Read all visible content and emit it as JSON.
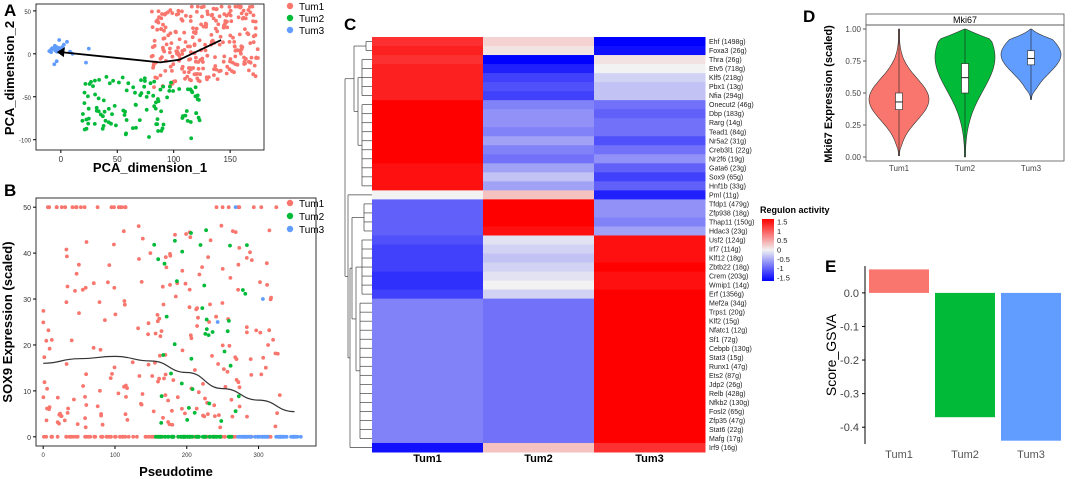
{
  "colors": {
    "tum1": "#F8766D",
    "tum2": "#00BA38",
    "tum3": "#619CFF",
    "heat_high": "#FF0000",
    "heat_mid": "#F2F2F2",
    "heat_low": "#0000FF",
    "arrow": "#000000"
  },
  "panels": {
    "A": "A",
    "B": "B",
    "C": "C",
    "D": "D",
    "E": "E"
  },
  "chart_data": [
    {
      "panel": "A",
      "type": "scatter",
      "xlabel": "PCA_dimension_1",
      "ylabel": "PCA_dimension_2",
      "xlim": [
        -22,
        180
      ],
      "ylim": [
        -112,
        58
      ],
      "xticks": [
        0,
        50,
        100,
        150
      ],
      "yticks": [
        50,
        0,
        -50,
        -100
      ],
      "legend": [
        "Tum1",
        "Tum2",
        "Tum3"
      ],
      "legend_position": "right",
      "trajectory": {
        "x": [
          0,
          88,
          105,
          142
        ],
        "y": [
          2,
          -10,
          -7,
          16
        ]
      },
      "series": [
        {
          "name": "Tum1",
          "count": 260,
          "x_range": [
            75,
            175
          ],
          "y_range": [
            -55,
            55
          ],
          "center": [
            130,
            10
          ]
        },
        {
          "name": "Tum2",
          "count": 110,
          "x_range": [
            15,
            125
          ],
          "y_range": [
            -105,
            -15
          ],
          "center": [
            75,
            -55
          ]
        },
        {
          "name": "Tum3",
          "count": 38,
          "x_range": [
            -15,
            30
          ],
          "y_range": [
            -20,
            25
          ],
          "center": [
            -3,
            5
          ]
        }
      ]
    },
    {
      "panel": "B",
      "type": "scatter",
      "xlabel": "Pseudotime",
      "ylabel": "SOX9 Expression (scaled)",
      "xlim": [
        -10,
        380
      ],
      "ylim": [
        -2,
        52
      ],
      "xticks": [
        0,
        100,
        200,
        300
      ],
      "yticks": [
        0,
        10,
        20,
        30,
        40,
        50
      ],
      "legend": [
        "Tum1",
        "Tum2",
        "Tum3"
      ],
      "legend_position": "right",
      "trend": {
        "x": [
          0,
          50,
          100,
          150,
          200,
          250,
          300,
          350
        ],
        "y": [
          16,
          17,
          17.5,
          16.5,
          14,
          10.5,
          8,
          5.5
        ]
      },
      "series": [
        {
          "name": "Tum1",
          "x_range": [
            0,
            330
          ],
          "y_range": [
            0,
            50
          ]
        },
        {
          "name": "Tum2",
          "x_range": [
            150,
            290
          ],
          "y_range": [
            0,
            45
          ]
        },
        {
          "name": "Tum3",
          "x_range": [
            260,
            360
          ],
          "y_range": [
            0,
            50
          ]
        }
      ]
    },
    {
      "panel": "C",
      "type": "heatmap",
      "columns": [
        "Tum1",
        "Tum2",
        "Tum3"
      ],
      "legend_title": "Regulon activity",
      "legend_ticks": [
        "1.5",
        "1",
        "0.5",
        "0",
        "-0.5",
        "-1",
        "-1.5"
      ],
      "rows": [
        {
          "label": "Ehf (1498g)",
          "values": [
            1.2,
            0.2,
            -1.5
          ]
        },
        {
          "label": "Foxa3 (26g)",
          "values": [
            1.3,
            0.1,
            -1.4
          ]
        },
        {
          "label": "Thra (26g)",
          "values": [
            1.2,
            -1.5,
            0.1
          ]
        },
        {
          "label": "Etv5 (718g)",
          "values": [
            1.3,
            -1.3,
            0.0
          ]
        },
        {
          "label": "Klf5 (218g)",
          "values": [
            1.3,
            -1.1,
            -0.2
          ]
        },
        {
          "label": "Pbx1 (13g)",
          "values": [
            1.3,
            -1.0,
            -0.3
          ]
        },
        {
          "label": "Nfia (294g)",
          "values": [
            1.3,
            -1.1,
            -0.3
          ]
        },
        {
          "label": "Onecut2 (46g)",
          "values": [
            1.5,
            -0.7,
            -0.8
          ]
        },
        {
          "label": "Dbp (183g)",
          "values": [
            1.5,
            -0.6,
            -0.9
          ]
        },
        {
          "label": "Rarg (14g)",
          "values": [
            1.5,
            -0.6,
            -0.8
          ]
        },
        {
          "label": "Tead1 (84g)",
          "values": [
            1.5,
            -0.7,
            -0.8
          ]
        },
        {
          "label": "Nr5a2 (31g)",
          "values": [
            1.5,
            -0.5,
            -1.0
          ]
        },
        {
          "label": "Creb3l1 (22g)",
          "values": [
            1.5,
            -0.7,
            -0.8
          ]
        },
        {
          "label": "Nr2f6 (19g)",
          "values": [
            1.5,
            -0.8,
            -0.6
          ]
        },
        {
          "label": "Gata6 (23g)",
          "values": [
            1.4,
            -0.5,
            -0.9
          ]
        },
        {
          "label": "Sox9 (65g)",
          "values": [
            1.4,
            -0.3,
            -1.1
          ]
        },
        {
          "label": "Hnf1b (33g)",
          "values": [
            1.4,
            -0.5,
            -0.9
          ]
        },
        {
          "label": "Pml (11g)",
          "values": [
            0.0,
            0.3,
            -1.3
          ]
        },
        {
          "label": "Tfdp1 (479g)",
          "values": [
            -0.9,
            1.5,
            -0.6
          ]
        },
        {
          "label": "Zfp938 (18g)",
          "values": [
            -0.9,
            1.5,
            -0.6
          ]
        },
        {
          "label": "Thap11 (150g)",
          "values": [
            -0.9,
            1.5,
            -0.7
          ]
        },
        {
          "label": "Hdac3 (23g)",
          "values": [
            -0.9,
            1.4,
            -0.5
          ]
        },
        {
          "label": "Usf2 (124g)",
          "values": [
            -1.0,
            -0.1,
            1.4
          ]
        },
        {
          "label": "Irf7 (114g)",
          "values": [
            -1.1,
            -0.2,
            1.4
          ]
        },
        {
          "label": "Klf12 (18g)",
          "values": [
            -1.1,
            -0.3,
            1.4
          ]
        },
        {
          "label": "Zbtb22 (18g)",
          "values": [
            -1.1,
            -0.2,
            1.5
          ]
        },
        {
          "label": "Crem (203g)",
          "values": [
            -1.2,
            -0.1,
            1.4
          ]
        },
        {
          "label": "Wmip1 (14g)",
          "values": [
            -1.2,
            0.0,
            1.4
          ]
        },
        {
          "label": "Erf (1356g)",
          "values": [
            -1.1,
            -0.2,
            1.5
          ]
        },
        {
          "label": "Mef2a (34g)",
          "values": [
            -0.7,
            -0.8,
            1.5
          ]
        },
        {
          "label": "Trps1 (20g)",
          "values": [
            -0.7,
            -0.8,
            1.5
          ]
        },
        {
          "label": "Klf2 (15g)",
          "values": [
            -0.7,
            -0.8,
            1.5
          ]
        },
        {
          "label": "Nfatc1 (12g)",
          "values": [
            -0.7,
            -0.8,
            1.5
          ]
        },
        {
          "label": "Sf1 (72g)",
          "values": [
            -0.7,
            -0.8,
            1.5
          ]
        },
        {
          "label": "Cebpb (130g)",
          "values": [
            -0.7,
            -0.8,
            1.5
          ]
        },
        {
          "label": "Stat3 (15g)",
          "values": [
            -0.7,
            -0.8,
            1.5
          ]
        },
        {
          "label": "Runx1 (47g)",
          "values": [
            -0.7,
            -0.8,
            1.5
          ]
        },
        {
          "label": "Ets2 (87g)",
          "values": [
            -0.7,
            -0.8,
            1.5
          ]
        },
        {
          "label": "Jdp2 (26g)",
          "values": [
            -0.7,
            -0.8,
            1.5
          ]
        },
        {
          "label": "Relb (428g)",
          "values": [
            -0.7,
            -0.8,
            1.5
          ]
        },
        {
          "label": "Nfkb2 (130g)",
          "values": [
            -0.7,
            -0.8,
            1.5
          ]
        },
        {
          "label": "Fosl2 (65g)",
          "values": [
            -0.7,
            -0.8,
            1.5
          ]
        },
        {
          "label": "Zfp35 (47g)",
          "values": [
            -0.7,
            -0.8,
            1.5
          ]
        },
        {
          "label": "Stat6 (22g)",
          "values": [
            -0.7,
            -0.8,
            1.5
          ]
        },
        {
          "label": "Mafg (17g)",
          "values": [
            -0.7,
            -0.8,
            1.5
          ]
        },
        {
          "label": "Irf9 (16g)",
          "values": [
            -1.4,
            0.3,
            1.2
          ]
        }
      ]
    },
    {
      "panel": "D",
      "type": "violin",
      "title": "Mki67",
      "ylabel": "Mki67 Expression (scaled)",
      "ylim": [
        0,
        1
      ],
      "yticks": [
        "0.00",
        "0.25",
        "0.50",
        "0.75",
        "1.00"
      ],
      "categories": [
        "Tum1",
        "Tum2",
        "Tum3"
      ],
      "series": [
        {
          "name": "Tum1",
          "min": 0.01,
          "q1": 0.37,
          "median": 0.43,
          "q3": 0.5,
          "max": 1.0,
          "mode": 0.45
        },
        {
          "name": "Tum2",
          "min": 0.0,
          "q1": 0.5,
          "median": 0.62,
          "q3": 0.73,
          "max": 1.0,
          "mode": 0.78
        },
        {
          "name": "Tum3",
          "min": 0.45,
          "q1": 0.72,
          "median": 0.77,
          "q3": 0.83,
          "max": 1.0,
          "mode": 0.8
        }
      ]
    },
    {
      "panel": "E",
      "type": "bar",
      "ylabel": "Score_GSVA",
      "ylim": [
        -0.45,
        0.08
      ],
      "yticks": [
        "0.0",
        "-0.1",
        "-0.2",
        "-0.3",
        "-0.4"
      ],
      "categories": [
        "Tum1",
        "Tum2",
        "Tum3"
      ],
      "values": [
        0.07,
        -0.37,
        -0.44
      ]
    }
  ]
}
